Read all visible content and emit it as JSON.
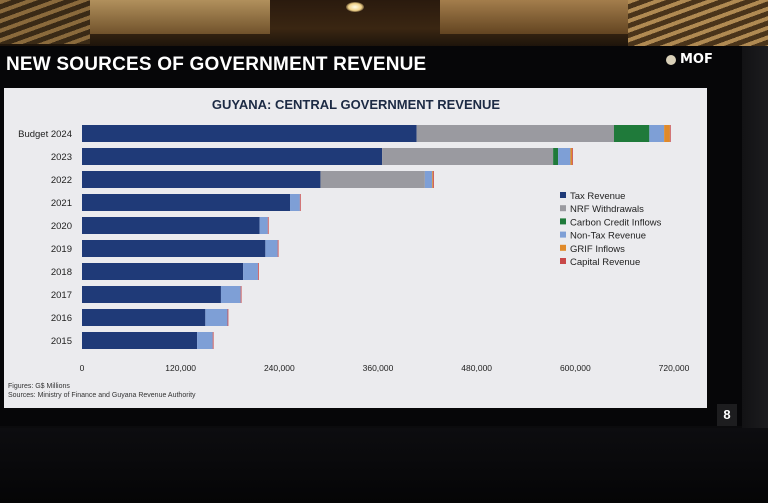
{
  "slide": {
    "title": "NEW SOURCES OF GOVERNMENT REVENUE",
    "logo_text": "MOF",
    "page_number": "8",
    "footnote_figures": "Figures: G$ Millions",
    "footnote_sources": "Sources: Ministry of Finance and Guyana Revenue Authority"
  },
  "colors": {
    "Tax Revenue": "#1f3a78",
    "NRF Withdrawals": "#9a9aa0",
    "Carbon Credit Inflows": "#1f7a3a",
    "Non-Tax Revenue": "#7e9fd6",
    "GRIF Inflows": "#e08a2a",
    "Capital Revenue": "#c84848"
  },
  "chart_data": {
    "type": "bar",
    "orientation": "horizontal",
    "stacked": true,
    "title": "GUYANA: CENTRAL GOVERNMENT REVENUE",
    "categories": [
      "Budget 2024",
      "2023",
      "2022",
      "2021",
      "2020",
      "2019",
      "2018",
      "2017",
      "2016",
      "2015"
    ],
    "series": [
      {
        "name": "Tax Revenue",
        "values": [
          407000,
          365000,
          290000,
          253000,
          216000,
          223000,
          196000,
          169000,
          150000,
          140000
        ]
      },
      {
        "name": "NRF Withdrawals",
        "values": [
          240000,
          208000,
          127000,
          0,
          0,
          0,
          0,
          0,
          0,
          0
        ]
      },
      {
        "name": "Carbon Credit Inflows",
        "values": [
          43000,
          6000,
          0,
          0,
          0,
          0,
          0,
          0,
          0,
          0
        ]
      },
      {
        "name": "Non-Tax Revenue",
        "values": [
          18000,
          15000,
          9000,
          12000,
          10000,
          15000,
          18000,
          24000,
          27000,
          19000
        ]
      },
      {
        "name": "GRIF Inflows",
        "values": [
          7000,
          2000,
          1000,
          0,
          0,
          0,
          0,
          0,
          0,
          0
        ]
      },
      {
        "name": "Capital Revenue",
        "values": [
          1000,
          1000,
          1000,
          1000,
          1000,
          1000,
          1000,
          1000,
          1000,
          1000
        ]
      }
    ],
    "xlim": [
      0,
      720000
    ],
    "x_ticks": [
      "0",
      "120,000",
      "240,000",
      "360,000",
      "480,000",
      "600,000",
      "720,000"
    ],
    "legend": [
      "Tax Revenue",
      "NRF Withdrawals",
      "Carbon Credit Inflows",
      "Non-Tax Revenue",
      "GRIF Inflows",
      "Capital Revenue"
    ],
    "legend_position": "right",
    "grid": false
  }
}
